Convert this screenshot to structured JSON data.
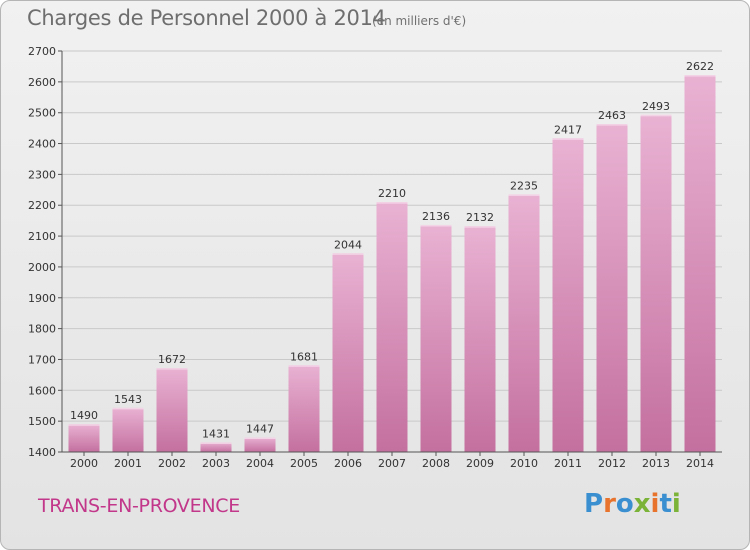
{
  "header": {
    "title": "Charges de Personnel 2000 à 2014",
    "subtitle": "(en milliers d'€)"
  },
  "footer": {
    "commune": "TRANS-EN-PROVENCE",
    "logo_text": "Proxiti",
    "logo_colors": [
      "#3a8fd1",
      "#e8732c",
      "#3a8fd1",
      "#7ab337",
      "#e8732c",
      "#3a8fd1",
      "#7ab337"
    ]
  },
  "colors": {
    "bar_light": "#e9b2d3",
    "bar_dark": "#c4709f",
    "axis": "#555555",
    "grid": "#c9c9c9",
    "text": "#333333"
  },
  "chart_data": {
    "type": "bar",
    "title": "Charges de Personnel 2000 à 2014",
    "subtitle": "(en milliers d'€)",
    "categories": [
      "2000",
      "2001",
      "2002",
      "2003",
      "2004",
      "2005",
      "2006",
      "2007",
      "2008",
      "2009",
      "2010",
      "2011",
      "2012",
      "2013",
      "2014"
    ],
    "values": [
      1490,
      1543,
      1672,
      1431,
      1447,
      1681,
      2044,
      2210,
      2136,
      2132,
      2235,
      2417,
      2463,
      2493,
      2622
    ],
    "data_labels": [
      "1490",
      "1543",
      "1672",
      "1431",
      "1447",
      "1681",
      "2044",
      "2210",
      "2136",
      "2132",
      "2235",
      "2417",
      "2463",
      "2493",
      "2622"
    ],
    "ylim": [
      1400,
      2700
    ],
    "yticks": [
      1400,
      1500,
      1600,
      1700,
      1800,
      1900,
      2000,
      2100,
      2200,
      2300,
      2400,
      2500,
      2600,
      2700
    ],
    "grid": true,
    "legend": "none"
  }
}
